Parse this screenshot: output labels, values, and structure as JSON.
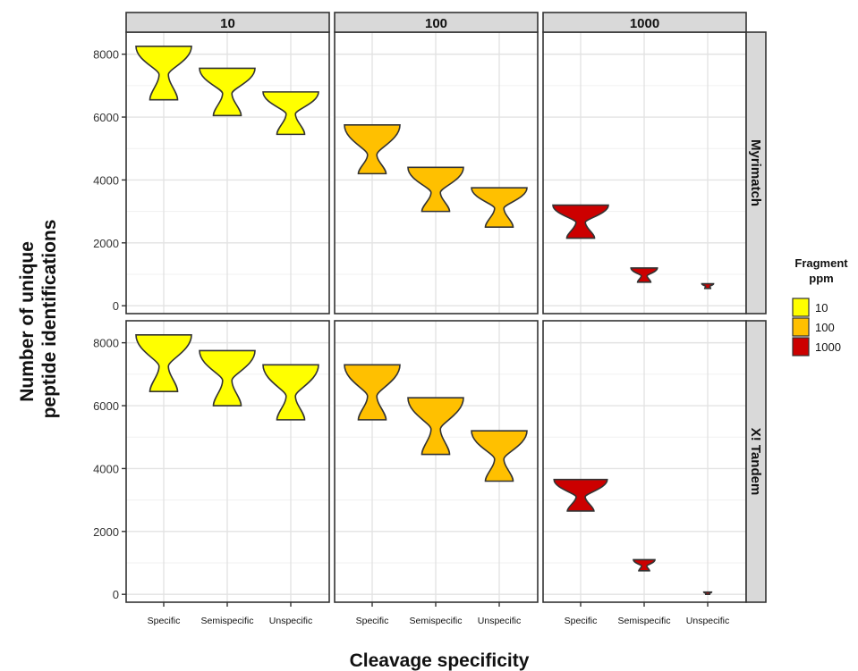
{
  "chart_data": {
    "type": "violin",
    "xlabel": "Cleavage specificity",
    "ylabel_lines": [
      "Number of unique",
      "peptide identifications"
    ],
    "categories": [
      "Specific",
      "Semispecific",
      "Unspecific"
    ],
    "col_facets": [
      "10",
      "100",
      "1000"
    ],
    "row_facets": [
      "Myrimatch",
      "X! Tandem"
    ],
    "y_ticks": [
      0,
      2000,
      4000,
      6000,
      8000
    ],
    "ylim": [
      -250,
      8700
    ],
    "legend": {
      "title_lines": [
        "Fragment",
        "ppm"
      ],
      "entries": [
        {
          "label": "10",
          "color": "#FFFF00"
        },
        {
          "label": "100",
          "color": "#FFC000"
        },
        {
          "label": "1000",
          "color": "#CC0000"
        }
      ],
      "placement": "right"
    },
    "panels": [
      {
        "row": "Myrimatch",
        "col": "10",
        "violins": [
          {
            "category": "Specific",
            "min": 6550,
            "max": 8250,
            "waist": 7350
          },
          {
            "category": "Semispecific",
            "min": 6050,
            "max": 7550,
            "waist": 6750
          },
          {
            "category": "Unspecific",
            "min": 5450,
            "max": 6800,
            "waist": 6100
          }
        ]
      },
      {
        "row": "Myrimatch",
        "col": "100",
        "violins": [
          {
            "category": "Specific",
            "min": 4200,
            "max": 5750,
            "waist": 4800
          },
          {
            "category": "Semispecific",
            "min": 3000,
            "max": 4400,
            "waist": 3600
          },
          {
            "category": "Unspecific",
            "min": 2500,
            "max": 3750,
            "waist": 3100
          }
        ]
      },
      {
        "row": "Myrimatch",
        "col": "1000",
        "violins": [
          {
            "category": "Specific",
            "min": 2150,
            "max": 3200,
            "waist": 2650
          },
          {
            "category": "Semispecific",
            "min": 750,
            "max": 1200,
            "waist": 950
          },
          {
            "category": "Unspecific",
            "min": 550,
            "max": 700,
            "waist": 620
          }
        ]
      },
      {
        "row": "X! Tandem",
        "col": "10",
        "violins": [
          {
            "category": "Specific",
            "min": 6450,
            "max": 8250,
            "waist": 7250
          },
          {
            "category": "Semispecific",
            "min": 6000,
            "max": 7750,
            "waist": 6800
          },
          {
            "category": "Unspecific",
            "min": 5550,
            "max": 7300,
            "waist": 6300
          }
        ]
      },
      {
        "row": "X! Tandem",
        "col": "100",
        "violins": [
          {
            "category": "Specific",
            "min": 5550,
            "max": 7300,
            "waist": 6300
          },
          {
            "category": "Semispecific",
            "min": 4450,
            "max": 6250,
            "waist": 5250
          },
          {
            "category": "Unspecific",
            "min": 3600,
            "max": 5200,
            "waist": 4300
          }
        ]
      },
      {
        "row": "X! Tandem",
        "col": "1000",
        "violins": [
          {
            "category": "Specific",
            "min": 2650,
            "max": 3650,
            "waist": 3100
          },
          {
            "category": "Semispecific",
            "min": 750,
            "max": 1100,
            "waist": 900
          },
          {
            "category": "Unspecific",
            "min": 0,
            "max": 70,
            "waist": 30
          }
        ]
      }
    ]
  }
}
